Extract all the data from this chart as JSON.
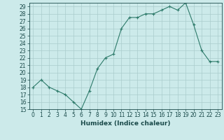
{
  "x": [
    0,
    1,
    2,
    3,
    4,
    5,
    6,
    7,
    8,
    9,
    10,
    11,
    12,
    13,
    14,
    15,
    16,
    17,
    18,
    19,
    20,
    21,
    22,
    23
  ],
  "y": [
    18,
    19,
    18,
    17.5,
    17,
    16,
    15,
    17.5,
    20.5,
    22,
    22.5,
    26,
    27.5,
    27.5,
    28,
    28,
    28.5,
    29,
    28.5,
    29.5,
    26.5,
    23,
    21.5,
    21.5
  ],
  "line_color": "#2d7a6a",
  "marker_color": "#2d7a6a",
  "bg_color": "#cceaea",
  "grid_color": "#aacccc",
  "xlabel": "Humidex (Indice chaleur)",
  "xlim": [
    -0.5,
    23.5
  ],
  "ylim": [
    15,
    29.5
  ],
  "yticks": [
    15,
    16,
    17,
    18,
    19,
    20,
    21,
    22,
    23,
    24,
    25,
    26,
    27,
    28,
    29
  ],
  "xticks": [
    0,
    1,
    2,
    3,
    4,
    5,
    6,
    7,
    8,
    9,
    10,
    11,
    12,
    13,
    14,
    15,
    16,
    17,
    18,
    19,
    20,
    21,
    22,
    23
  ],
  "tick_fontsize": 5.5,
  "xlabel_fontsize": 6.5,
  "marker_size": 2.5,
  "linewidth": 0.8
}
